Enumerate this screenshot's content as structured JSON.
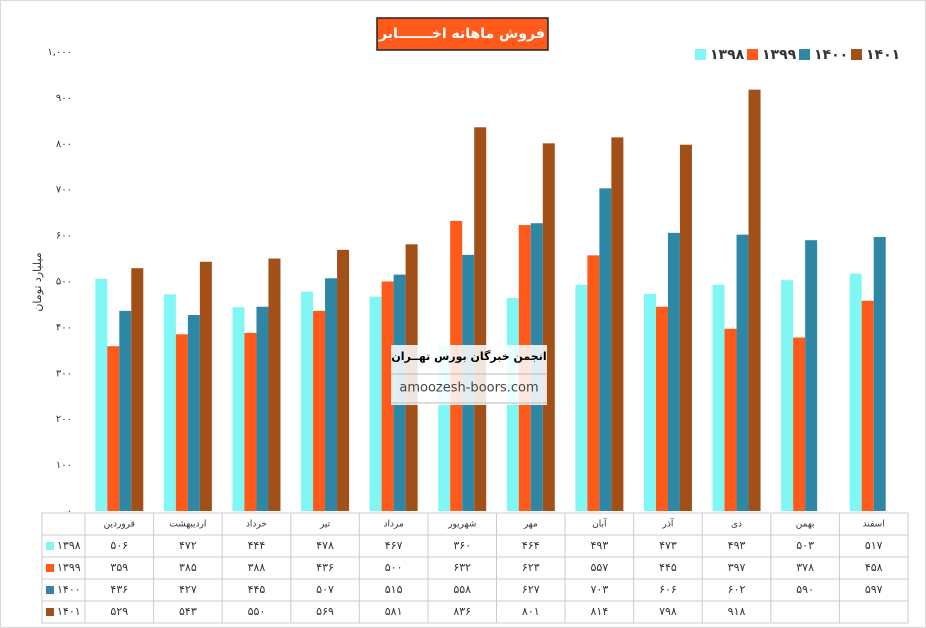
{
  "chart_data": {
    "type": "bar",
    "title": "فروش ماهانه اخـــــــابر",
    "y_label": "میلیارد تومان",
    "annotations": [
      "انجمن خبرگان بورس تهــران",
      "amoozesh-boors.com"
    ],
    "categories": [
      "فروردین",
      "اردیبهشت",
      "خرداد",
      "تیر",
      "مرداد",
      "شهریور",
      "مهر",
      "آبان",
      "آذر",
      "دی",
      "بهمن",
      "اسفند"
    ],
    "series": [
      {
        "name": "۱۳۹۸",
        "color": "#80f7f5",
        "values": [
          506,
          472,
          444,
          478,
          467,
          360,
          464,
          493,
          473,
          493,
          503,
          517
        ],
        "value_labels": [
          "۵۰۶",
          "۴۷۲",
          "۴۴۴",
          "۴۷۸",
          "۴۶۷",
          "۳۶۰",
          "۴۶۴",
          "۴۹۳",
          "۴۷۳",
          "۴۹۳",
          "۵۰۳",
          "۵۱۷"
        ]
      },
      {
        "name": "۱۳۹۹",
        "color": "#ff5a1a",
        "values": [
          359,
          385,
          388,
          436,
          500,
          632,
          623,
          557,
          445,
          397,
          378,
          458
        ],
        "value_labels": [
          "۳۵۹",
          "۳۸۵",
          "۳۸۸",
          "۴۳۶",
          "۵۰۰",
          "۶۳۲",
          "۶۲۳",
          "۵۵۷",
          "۴۴۵",
          "۳۹۷",
          "۳۷۸",
          "۴۵۸"
        ]
      },
      {
        "name": "۱۴۰۰",
        "color": "#2e87a5",
        "values": [
          436,
          427,
          445,
          507,
          515,
          558,
          627,
          703,
          606,
          602,
          590,
          597
        ],
        "value_labels": [
          "۴۳۶",
          "۴۲۷",
          "۴۴۵",
          "۵۰۷",
          "۵۱۵",
          "۵۵۸",
          "۶۲۷",
          "۷۰۳",
          "۶۰۶",
          "۶۰۲",
          "۵۹۰",
          "۵۹۷"
        ]
      },
      {
        "name": "۱۴۰۱",
        "color": "#a24f18",
        "values": [
          529,
          543,
          550,
          569,
          581,
          836,
          801,
          814,
          798,
          918,
          null,
          null
        ],
        "value_labels": [
          "۵۲۹",
          "۵۴۳",
          "۵۵۰",
          "۵۶۹",
          "۵۸۱",
          "۸۳۶",
          "۸۰۱",
          "۸۱۴",
          "۷۹۸",
          "۹۱۸",
          null,
          null
        ]
      }
    ],
    "ylim": [
      0,
      1000
    ],
    "yticks": [
      {
        "value": 0,
        "label": "۰"
      },
      {
        "value": 100,
        "label": "۱۰۰"
      },
      {
        "value": 200,
        "label": "۲۰۰"
      },
      {
        "value": 300,
        "label": "۳۰۰"
      },
      {
        "value": 400,
        "label": "۴۰۰"
      },
      {
        "value": 500,
        "label": "۵۰۰"
      },
      {
        "value": 600,
        "label": "۶۰۰"
      },
      {
        "value": 700,
        "label": "۷۰۰"
      },
      {
        "value": 800,
        "label": "۸۰۰"
      },
      {
        "value": 900,
        "label": "۹۰۰"
      },
      {
        "value": 1000,
        "label": "۱,۰۰۰"
      }
    ],
    "grid": false,
    "legend": "top-right"
  }
}
